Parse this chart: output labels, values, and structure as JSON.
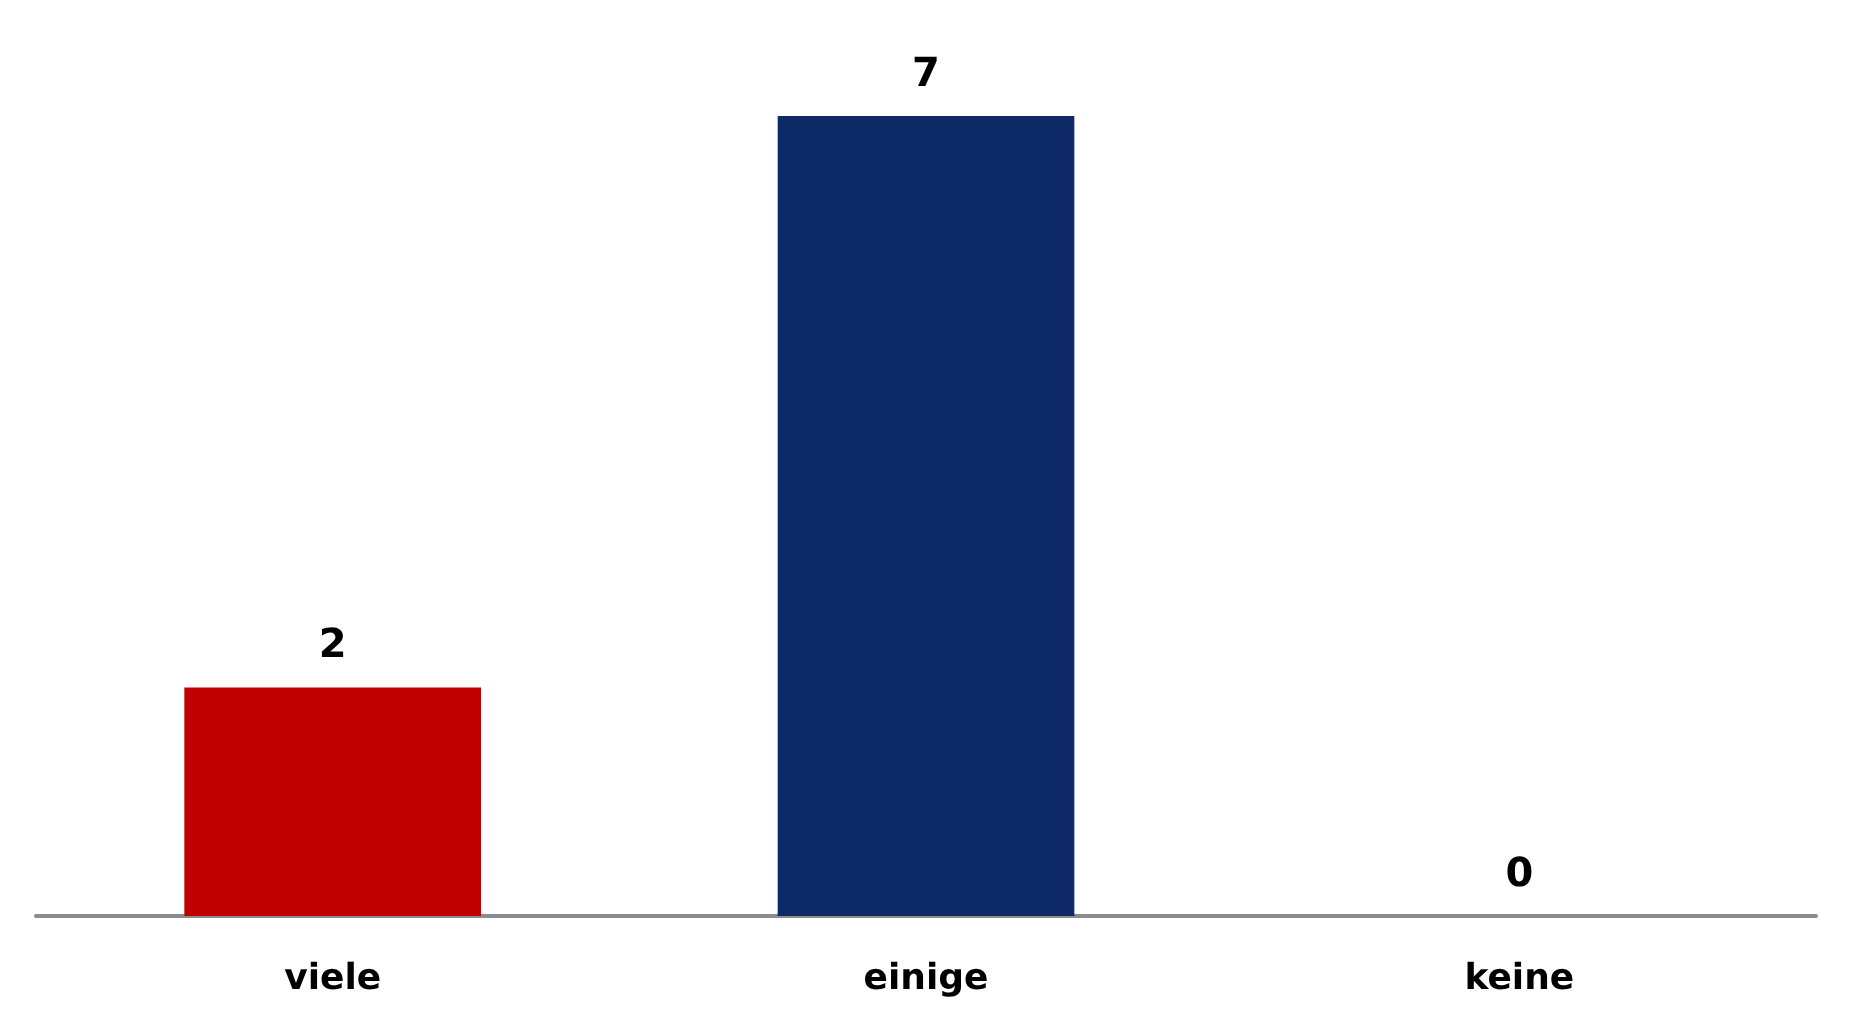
{
  "chart_data": {
    "type": "bar",
    "categories": [
      "viele",
      "einige",
      "keine"
    ],
    "values": [
      2,
      7,
      0
    ],
    "colors": [
      "#c00000",
      "#0d2a66",
      "#7f7f7f"
    ],
    "data_labels": true,
    "tick_labels": "x"
  }
}
